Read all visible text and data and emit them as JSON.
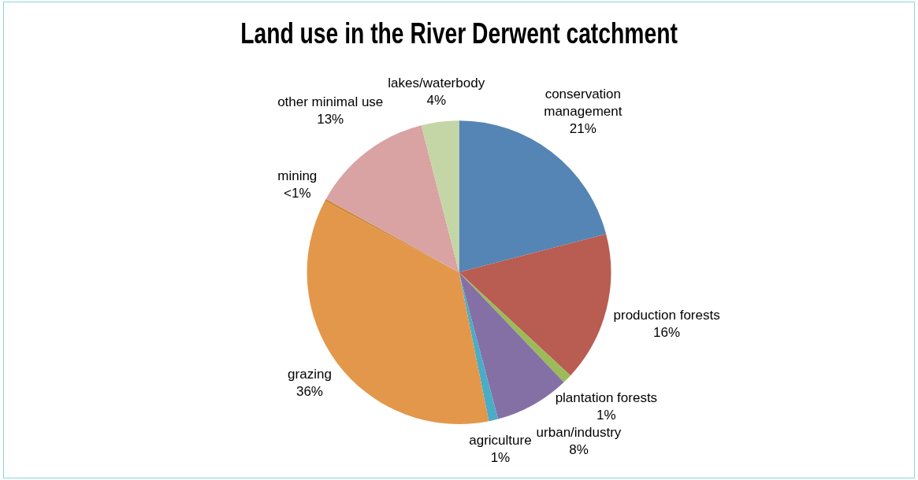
{
  "chart_data": {
    "type": "pie",
    "title": "Land use in the River Derwent catchment",
    "categories": [
      "conservation management",
      "production forests",
      "plantation forests",
      "urban/industry",
      "agriculture",
      "grazing",
      "mining",
      "other minimal use",
      "lakes/waterbody"
    ],
    "values": [
      21,
      16,
      1,
      8,
      1,
      36,
      0.3,
      13,
      4
    ],
    "value_labels": [
      "21%",
      "16%",
      "1%",
      "8%",
      "1%",
      "36%",
      "<1%",
      "13%",
      "4%"
    ],
    "colors": [
      "#5585b5",
      "#b95c52",
      "#9bbb59",
      "#8570a5",
      "#4bacc6",
      "#e3974b",
      "#d28a3c",
      "#d9a3a3",
      "#c4d6a5"
    ],
    "legend": false
  }
}
